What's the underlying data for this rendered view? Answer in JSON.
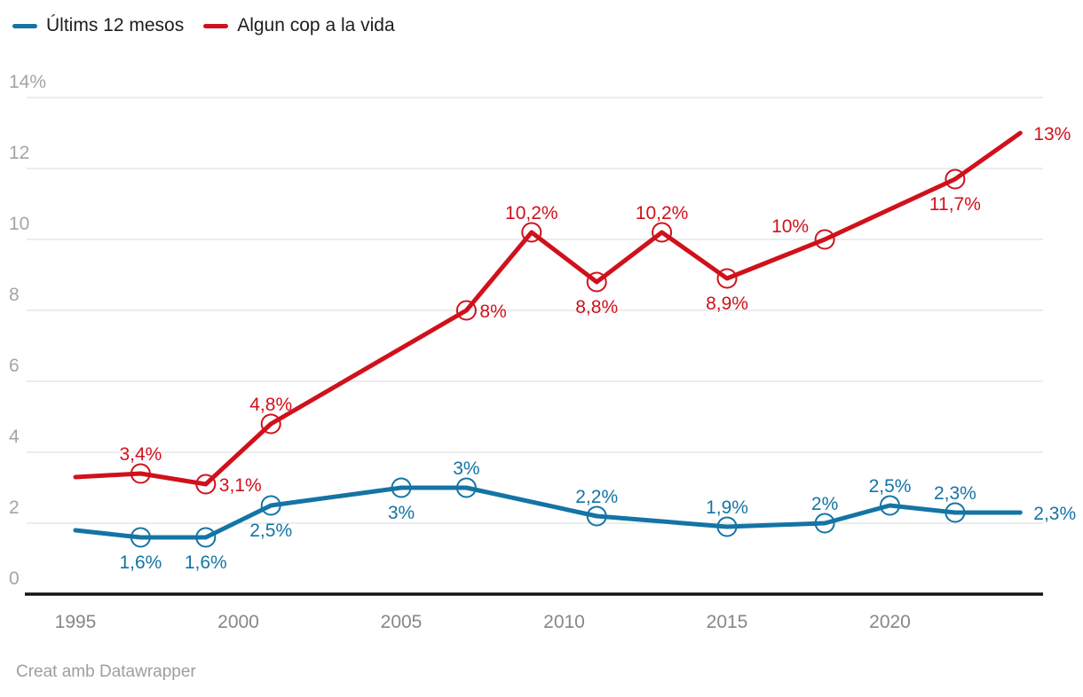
{
  "footer": {
    "attribution": "Creat amb Datawrapper"
  },
  "colors": {
    "background": "#ffffff",
    "grid": "#e6e6e6",
    "axis_line": "#141414",
    "y_tick_text": "#a5a5a5",
    "x_tick_text": "#878787",
    "legend_text": "#1d1d1d",
    "footer_text": "#9e9e9e",
    "series_blue": "#1474a4",
    "series_red": "#d0111b"
  },
  "chart_data": {
    "type": "line",
    "title": "",
    "xlabel": "",
    "ylabel": "",
    "ylim": [
      0,
      14
    ],
    "xlim": [
      1993.5,
      2024.7
    ],
    "grid": true,
    "legend_position": "top-left",
    "y_ticks": [
      {
        "value": 14,
        "label": "14%"
      },
      {
        "value": 12,
        "label": "12"
      },
      {
        "value": 10,
        "label": "10"
      },
      {
        "value": 8,
        "label": "8"
      },
      {
        "value": 6,
        "label": "6"
      },
      {
        "value": 4,
        "label": "4"
      },
      {
        "value": 2,
        "label": "2"
      },
      {
        "value": 0,
        "label": "0"
      }
    ],
    "x_ticks": [
      {
        "value": 1995,
        "label": "1995"
      },
      {
        "value": 2000,
        "label": "2000"
      },
      {
        "value": 2005,
        "label": "2005"
      },
      {
        "value": 2010,
        "label": "2010"
      },
      {
        "value": 2015,
        "label": "2015"
      },
      {
        "value": 2020,
        "label": "2020"
      }
    ],
    "series": [
      {
        "name": "Últims 12 mesos",
        "color": "#1474a4",
        "points": [
          {
            "year": 1995,
            "value": 1.8,
            "label": "",
            "label_pos": "",
            "marker": false
          },
          {
            "year": 1997,
            "value": 1.6,
            "label": "1,6%",
            "label_pos": "below",
            "marker": true
          },
          {
            "year": 1999,
            "value": 1.6,
            "label": "1,6%",
            "label_pos": "below",
            "marker": true
          },
          {
            "year": 2001,
            "value": 2.5,
            "label": "2,5%",
            "label_pos": "below",
            "marker": true
          },
          {
            "year": 2005,
            "value": 3,
            "label": "3%",
            "label_pos": "below",
            "marker": true
          },
          {
            "year": 2007,
            "value": 3,
            "label": "3%",
            "label_pos": "above",
            "marker": true
          },
          {
            "year": 2011,
            "value": 2.2,
            "label": "2,2%",
            "label_pos": "above",
            "marker": true
          },
          {
            "year": 2015,
            "value": 1.9,
            "label": "1,9%",
            "label_pos": "above",
            "marker": true
          },
          {
            "year": 2018,
            "value": 2,
            "label": "2%",
            "label_pos": "above",
            "marker": true
          },
          {
            "year": 2020,
            "value": 2.5,
            "label": "2,5%",
            "label_pos": "above",
            "marker": true
          },
          {
            "year": 2022,
            "value": 2.3,
            "label": "2,3%",
            "label_pos": "above",
            "marker": true
          },
          {
            "year": 2024,
            "value": 2.3,
            "label": "2,3%",
            "label_pos": "right",
            "marker": false
          }
        ]
      },
      {
        "name": "Algun cop a la vida",
        "color": "#d0111b",
        "points": [
          {
            "year": 1995,
            "value": 3.3,
            "label": "",
            "label_pos": "",
            "marker": false
          },
          {
            "year": 1997,
            "value": 3.4,
            "label": "3,4%",
            "label_pos": "above",
            "marker": true
          },
          {
            "year": 1999,
            "value": 3.1,
            "label": "3,1%",
            "label_pos": "right",
            "marker": true
          },
          {
            "year": 2001,
            "value": 4.8,
            "label": "4,8%",
            "label_pos": "above",
            "marker": true
          },
          {
            "year": 2007,
            "value": 8,
            "label": "8%",
            "label_pos": "right",
            "marker": true
          },
          {
            "year": 2009,
            "value": 10.2,
            "label": "10,2%",
            "label_pos": "above",
            "marker": true
          },
          {
            "year": 2011,
            "value": 8.8,
            "label": "8,8%",
            "label_pos": "below",
            "marker": true
          },
          {
            "year": 2013,
            "value": 10.2,
            "label": "10,2%",
            "label_pos": "above",
            "marker": true
          },
          {
            "year": 2015,
            "value": 8.9,
            "label": "8,9%",
            "label_pos": "below",
            "marker": true
          },
          {
            "year": 2018,
            "value": 10,
            "label": "10%",
            "label_pos": "above-left",
            "marker": true
          },
          {
            "year": 2022,
            "value": 11.7,
            "label": "11,7%",
            "label_pos": "below",
            "marker": true
          },
          {
            "year": 2024,
            "value": 13,
            "label": "13%",
            "label_pos": "right",
            "marker": false
          }
        ]
      }
    ]
  }
}
